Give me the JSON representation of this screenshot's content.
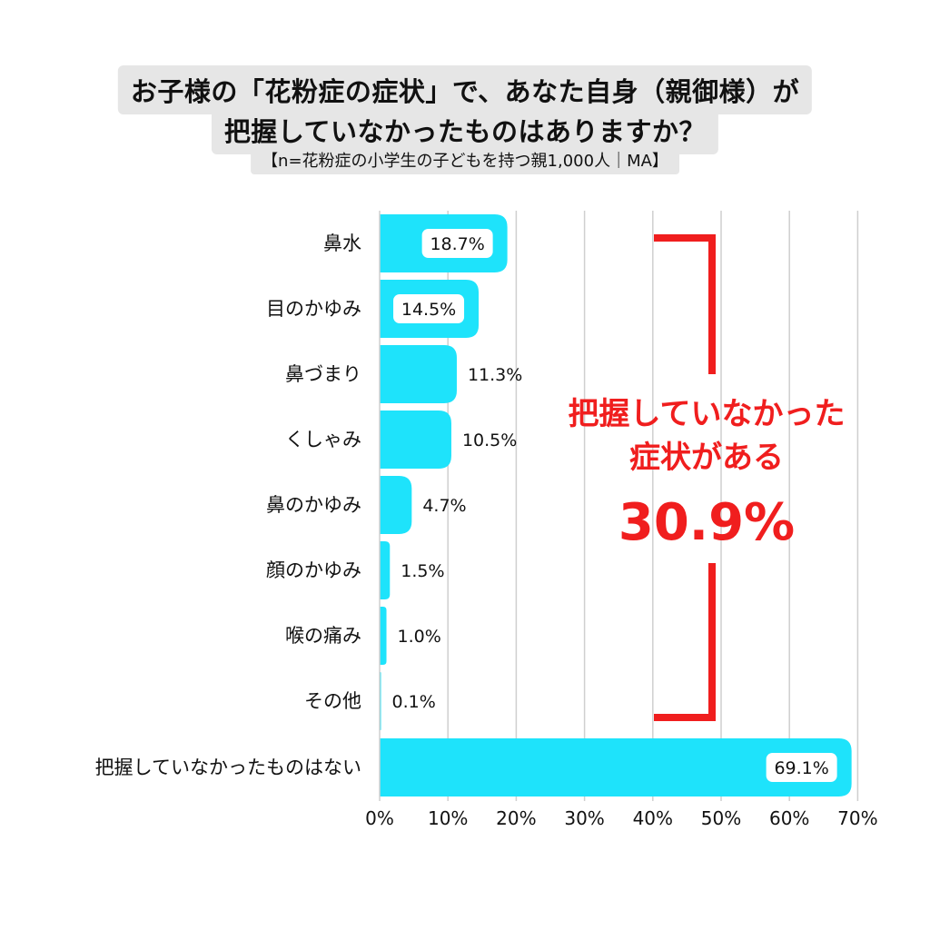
{
  "header": {
    "title_line1": "お子様の「花粉症の症状」で、あなた自身（親御様）が",
    "title_line2": "把握していなかったものはありますか？",
    "subtitle": "【n=花粉症の小学生の子どもを持つ親1,000人｜MA】"
  },
  "callout": {
    "line1": "把握していなかった",
    "line2": "症状がある",
    "value": "30.9%"
  },
  "chart_data": {
    "type": "bar",
    "orientation": "horizontal",
    "categories": [
      "鼻水",
      "目のかゆみ",
      "鼻づまり",
      "くしゃみ",
      "鼻のかゆみ",
      "顔のかゆみ",
      "喉の痛み",
      "その他",
      "把握していなかったものはない"
    ],
    "values": [
      18.7,
      14.5,
      11.3,
      10.5,
      4.7,
      1.5,
      1.0,
      0.1,
      69.1
    ],
    "value_labels": [
      "18.7%",
      "14.5%",
      "11.3%",
      "10.5%",
      "4.7%",
      "1.5%",
      "1.0%",
      "0.1%",
      "69.1%"
    ],
    "xlim": [
      0,
      70
    ],
    "x_ticks": [
      "0%",
      "10%",
      "20%",
      "30%",
      "40%",
      "50%",
      "60%",
      "70%"
    ],
    "grid": true,
    "bar_color": "#1ee3fb",
    "accent_color": "#f01e1e"
  }
}
